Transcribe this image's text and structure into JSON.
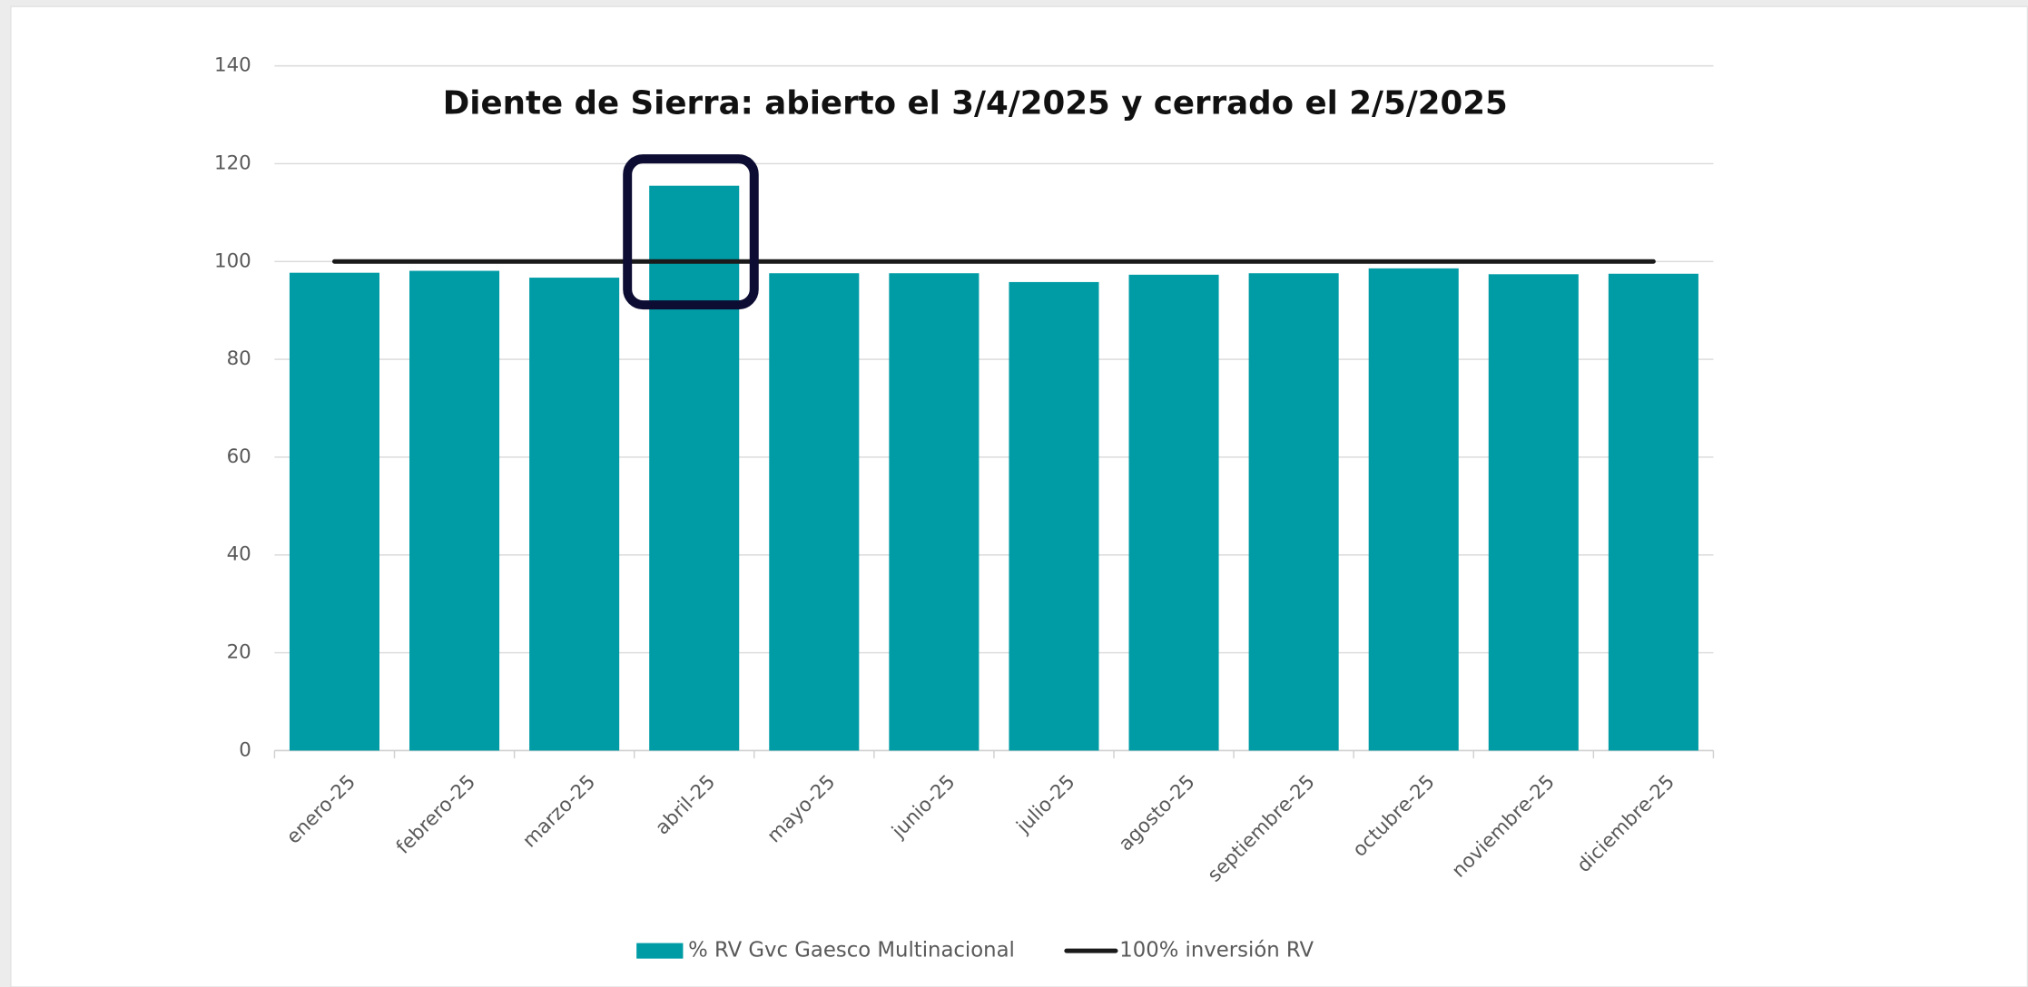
{
  "chart_data": {
    "type": "bar",
    "title": "Diente de Sierra: abierto el 3/4/2025 y cerrado el  2/5/2025",
    "categories": [
      "enero-25",
      "febrero-25",
      "marzo-25",
      "abril-25",
      "mayo-25",
      "junio-25",
      "julio-25",
      "agosto-25",
      "septiembre-25",
      "octubre-25",
      "noviembre-25",
      "diciembre-25"
    ],
    "series": [
      {
        "name": "% RV Gvc Gaesco Multinacional",
        "color": "#009ca6",
        "type": "bar",
        "values": [
          97.7,
          98.1,
          96.7,
          115.5,
          97.6,
          97.6,
          95.8,
          97.3,
          97.6,
          98.6,
          97.4,
          97.5
        ]
      },
      {
        "name": "100% inversión RV",
        "color": "#1a1a1a",
        "type": "line",
        "values": [
          100,
          100,
          100,
          100,
          100,
          100,
          100,
          100,
          100,
          100,
          100,
          100
        ]
      }
    ],
    "ylim": [
      0,
      140
    ],
    "yticks": [
      0,
      20,
      40,
      60,
      80,
      100,
      120,
      140
    ],
    "grid": true,
    "legend": "bottom"
  }
}
